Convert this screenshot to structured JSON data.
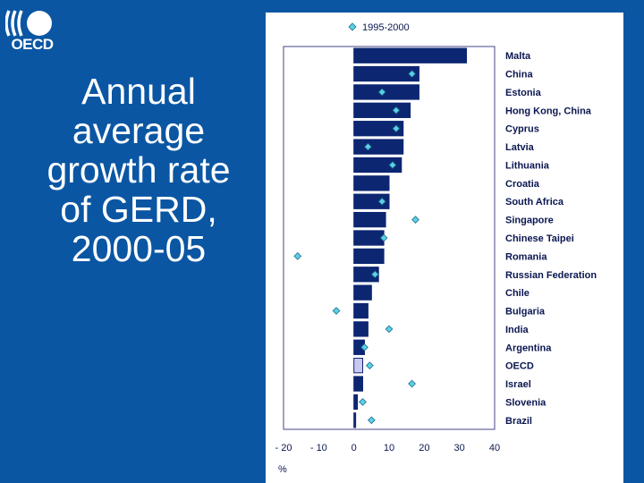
{
  "logo": {
    "text": "OECD"
  },
  "slide": {
    "title": "Annual average growth rate of GERD, 2000-05"
  },
  "chart_data": {
    "type": "bar",
    "orientation": "horizontal",
    "unit_label": "%",
    "categories": [
      "Malta",
      "China",
      "Estonia",
      "Hong Kong, China",
      "Cyprus",
      "Latvia",
      "Lithuania",
      "Croatia",
      "South Africa",
      "Singapore",
      "Chinese Taipei",
      "Romania",
      "Russian Federation",
      "Chile",
      "Bulgaria",
      "India",
      "Argentina",
      "OECD",
      "Israel",
      "Slovenia",
      "Brazil"
    ],
    "series": [
      {
        "name": "2000-05",
        "kind": "bar",
        "values": [
          32,
          18.5,
          18.5,
          16,
          14,
          14,
          13.5,
          10,
          10,
          9,
          8.5,
          8.5,
          7,
          5,
          4,
          4,
          3,
          2.5,
          2.5,
          1,
          0.5
        ]
      },
      {
        "name": "1995-2000",
        "kind": "marker",
        "values": [
          null,
          16.5,
          8,
          12,
          12,
          4,
          11,
          null,
          8,
          17.5,
          8.5,
          -16,
          6,
          null,
          -5,
          10,
          3,
          4.5,
          16.5,
          2.5,
          5
        ]
      }
    ],
    "highlight": "OECD",
    "legend": {
      "label": "1995-2000",
      "position": "top"
    },
    "xticks": [
      -20,
      -10,
      0,
      10,
      20,
      30,
      40
    ],
    "xtick_labels": [
      "- 20",
      "- 10",
      "0",
      "10",
      "20",
      "30",
      "40"
    ],
    "xlim": [
      -20,
      40
    ],
    "colors": {
      "bar": "#0d2672",
      "highlight": "#c8c8f0",
      "marker": "#5bd0e6",
      "marker_edge": "#1c6c8a"
    }
  }
}
